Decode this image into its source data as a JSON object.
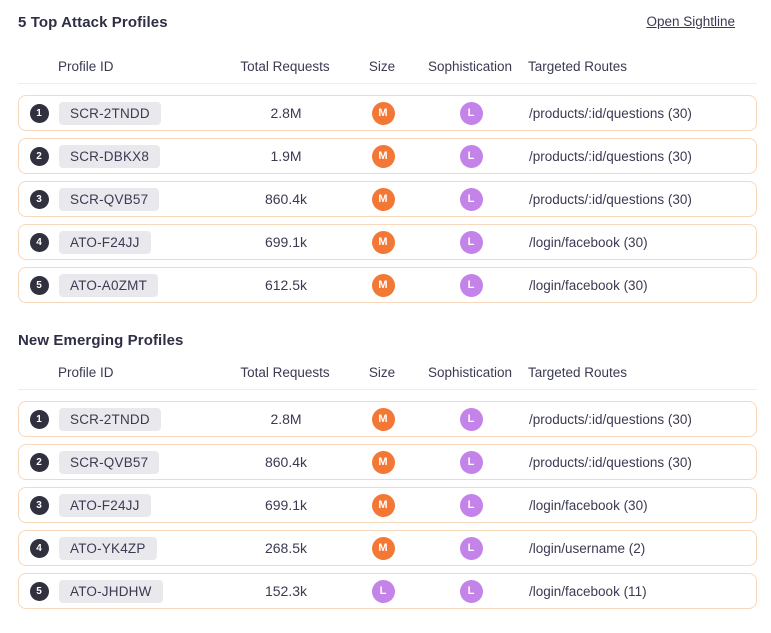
{
  "colors": {
    "size_medium_orange": "#f47835",
    "level_low_purple": "#c383e8",
    "rank_badge": "#30303f",
    "row_border": "#f8d8ba",
    "profile_chip_bg": "#e9e9ed",
    "text": "#3a3a52"
  },
  "sections": [
    {
      "title": "5 Top Attack Profiles",
      "link_label": "Open Sightline",
      "columns": [
        "Profile ID",
        "Total Requests",
        "Size",
        "Sophistication",
        "Targeted Routes"
      ],
      "rows": [
        {
          "rank": "1",
          "profile_id": "SCR-2TNDD",
          "total_requests": "2.8M",
          "size": "M",
          "size_color": "orange",
          "sophistication": "L",
          "sophistication_color": "purple",
          "targeted_routes": "/products/:id/questions (30)"
        },
        {
          "rank": "2",
          "profile_id": "SCR-DBKX8",
          "total_requests": "1.9M",
          "size": "M",
          "size_color": "orange",
          "sophistication": "L",
          "sophistication_color": "purple",
          "targeted_routes": "/products/:id/questions (30)"
        },
        {
          "rank": "3",
          "profile_id": "SCR-QVB57",
          "total_requests": "860.4k",
          "size": "M",
          "size_color": "orange",
          "sophistication": "L",
          "sophistication_color": "purple",
          "targeted_routes": "/products/:id/questions (30)"
        },
        {
          "rank": "4",
          "profile_id": "ATO-F24JJ",
          "total_requests": "699.1k",
          "size": "M",
          "size_color": "orange",
          "sophistication": "L",
          "sophistication_color": "purple",
          "targeted_routes": "/login/facebook (30)"
        },
        {
          "rank": "5",
          "profile_id": "ATO-A0ZMT",
          "total_requests": "612.5k",
          "size": "M",
          "size_color": "orange",
          "sophistication": "L",
          "sophistication_color": "purple",
          "targeted_routes": "/login/facebook (30)"
        }
      ]
    },
    {
      "title": "New Emerging Profiles",
      "link_label": "",
      "columns": [
        "Profile ID",
        "Total Requests",
        "Size",
        "Sophistication",
        "Targeted Routes"
      ],
      "rows": [
        {
          "rank": "1",
          "profile_id": "SCR-2TNDD",
          "total_requests": "2.8M",
          "size": "M",
          "size_color": "orange",
          "sophistication": "L",
          "sophistication_color": "purple",
          "targeted_routes": "/products/:id/questions (30)"
        },
        {
          "rank": "2",
          "profile_id": "SCR-QVB57",
          "total_requests": "860.4k",
          "size": "M",
          "size_color": "orange",
          "sophistication": "L",
          "sophistication_color": "purple",
          "targeted_routes": "/products/:id/questions (30)"
        },
        {
          "rank": "3",
          "profile_id": "ATO-F24JJ",
          "total_requests": "699.1k",
          "size": "M",
          "size_color": "orange",
          "sophistication": "L",
          "sophistication_color": "purple",
          "targeted_routes": "/login/facebook (30)"
        },
        {
          "rank": "4",
          "profile_id": "ATO-YK4ZP",
          "total_requests": "268.5k",
          "size": "M",
          "size_color": "orange",
          "sophistication": "L",
          "sophistication_color": "purple",
          "targeted_routes": "/login/username (2)"
        },
        {
          "rank": "5",
          "profile_id": "ATO-JHDHW",
          "total_requests": "152.3k",
          "size": "L",
          "size_color": "purple",
          "sophistication": "L",
          "sophistication_color": "purple",
          "targeted_routes": "/login/facebook (11)"
        }
      ]
    }
  ]
}
